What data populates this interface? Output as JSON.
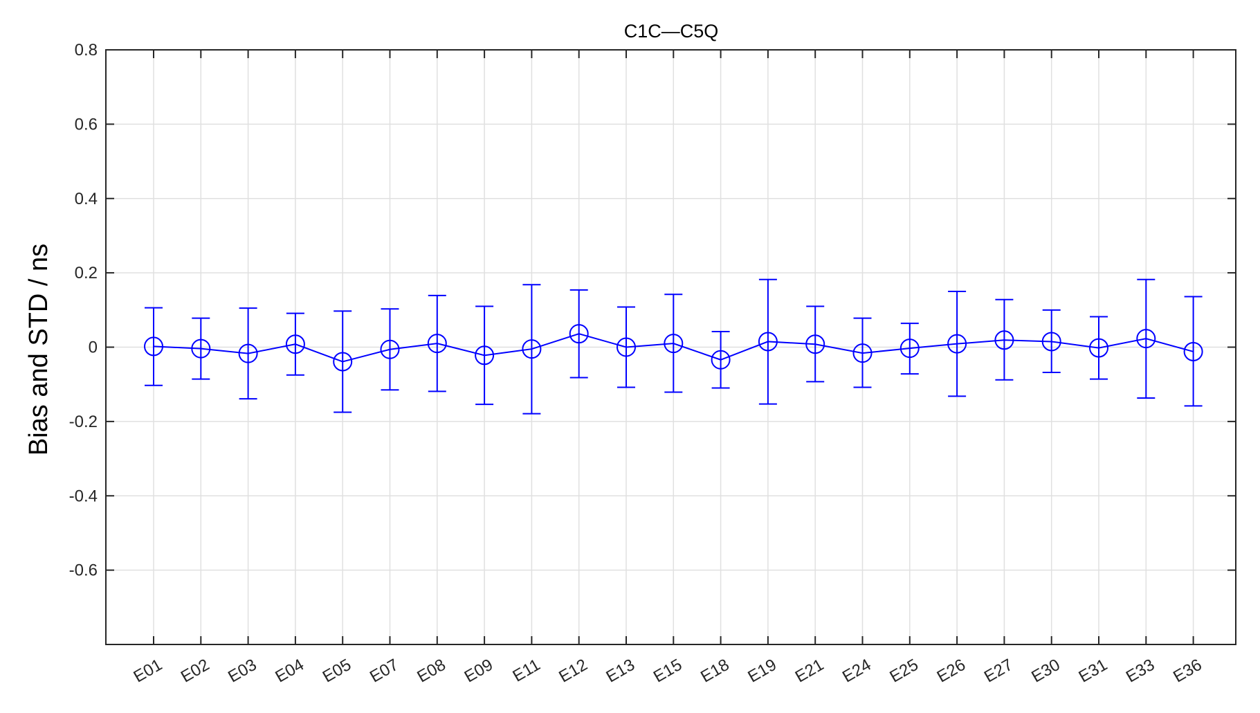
{
  "chart_data": {
    "type": "line",
    "title": "C1C—C5Q",
    "xlabel": "",
    "ylabel": "Bias and STD / ns",
    "ylim": [
      -0.8,
      0.8
    ],
    "yticks": [
      -0.6,
      -0.4,
      -0.2,
      0,
      0.2,
      0.4,
      0.6,
      0.8
    ],
    "ytick_labels": [
      "-0.6",
      "-0.4",
      "-0.2",
      "0",
      "0.2",
      "0.4",
      "0.6",
      "0.8"
    ],
    "grid": true,
    "marker": "circle",
    "color": "#0000ff",
    "categories": [
      "E01",
      "E02",
      "E03",
      "E04",
      "E05",
      "E07",
      "E08",
      "E09",
      "E11",
      "E12",
      "E13",
      "E15",
      "E18",
      "E19",
      "E21",
      "E24",
      "E25",
      "E26",
      "E27",
      "E30",
      "E31",
      "E33",
      "E36"
    ],
    "series": [
      {
        "values": [
          0.002,
          -0.004,
          -0.017,
          0.008,
          -0.039,
          -0.006,
          0.01,
          -0.022,
          -0.005,
          0.036,
          0.0,
          0.01,
          -0.034,
          0.015,
          0.008,
          -0.016,
          -0.003,
          0.009,
          0.019,
          0.015,
          -0.002,
          0.023,
          -0.012
        ],
        "error_upper": [
          0.106,
          0.078,
          0.105,
          0.091,
          0.097,
          0.103,
          0.139,
          0.11,
          0.168,
          0.154,
          0.108,
          0.142,
          0.042,
          0.182,
          0.11,
          0.078,
          0.064,
          0.15,
          0.128,
          0.1,
          0.082,
          0.182,
          0.136
        ],
        "error_lower": [
          -0.103,
          -0.086,
          -0.139,
          -0.075,
          -0.175,
          -0.115,
          -0.119,
          -0.154,
          -0.179,
          -0.082,
          -0.108,
          -0.121,
          -0.11,
          -0.153,
          -0.093,
          -0.108,
          -0.072,
          -0.132,
          -0.088,
          -0.068,
          -0.086,
          -0.137,
          -0.158
        ]
      }
    ]
  }
}
